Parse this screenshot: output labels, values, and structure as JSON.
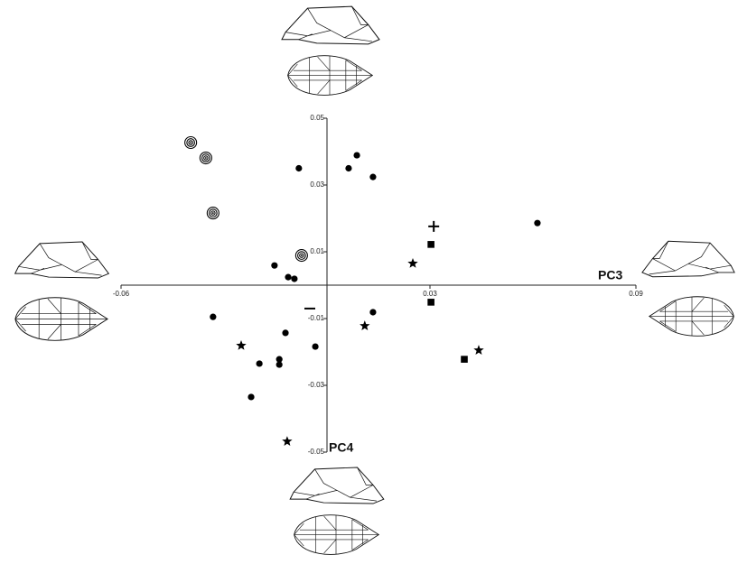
{
  "chart_data": {
    "type": "scatter",
    "xlabel": "PC3",
    "ylabel": "PC4",
    "xlim": [
      -0.06,
      0.09
    ],
    "ylim": [
      -0.05,
      0.05
    ],
    "xticks": [
      -0.06,
      0.03,
      0.09
    ],
    "yticks": [
      0.05,
      0.03,
      0.01,
      -0.01,
      -0.03,
      -0.05
    ],
    "series": [
      {
        "marker": "dot",
        "color": "#000000",
        "x": [
          0.0063,
          -0.0082,
          0.0087,
          0.0134,
          0.0613,
          -0.0153,
          -0.0113,
          -0.0095,
          -0.0332,
          0.0134,
          -0.0121,
          -0.0034,
          -0.0197,
          -0.0139,
          -0.0139,
          -0.0221
        ],
        "values": [
          0.035,
          0.035,
          0.0389,
          0.0324,
          0.0186,
          0.0059,
          0.0024,
          0.0019,
          -0.0095,
          -0.0081,
          -0.0143,
          -0.0184,
          -0.0235,
          -0.0222,
          -0.0238,
          -0.0335
        ]
      },
      {
        "marker": "target",
        "color": "#000000",
        "x": [
          -0.0397,
          -0.0353,
          -0.0332,
          -0.0074
        ],
        "values": [
          0.0427,
          0.0381,
          0.0216,
          0.0089
        ]
      },
      {
        "marker": "star",
        "color": "#000000",
        "x": [
          0.025,
          0.011,
          -0.025,
          0.0442,
          -0.0116
        ],
        "values": [
          0.0065,
          -0.0122,
          -0.0181,
          -0.0195,
          -0.0468
        ]
      },
      {
        "marker": "square",
        "color": "#000000",
        "x": [
          0.0303,
          0.0303,
          0.04
        ],
        "values": [
          0.0122,
          -0.0051,
          -0.0222
        ]
      },
      {
        "marker": "plus",
        "color": "#000000",
        "x": [
          0.0311
        ],
        "values": [
          0.0176
        ]
      },
      {
        "marker": "minus",
        "color": "#000000",
        "x": [
          -0.005
        ],
        "values": [
          -0.007
        ]
      }
    ]
  }
}
